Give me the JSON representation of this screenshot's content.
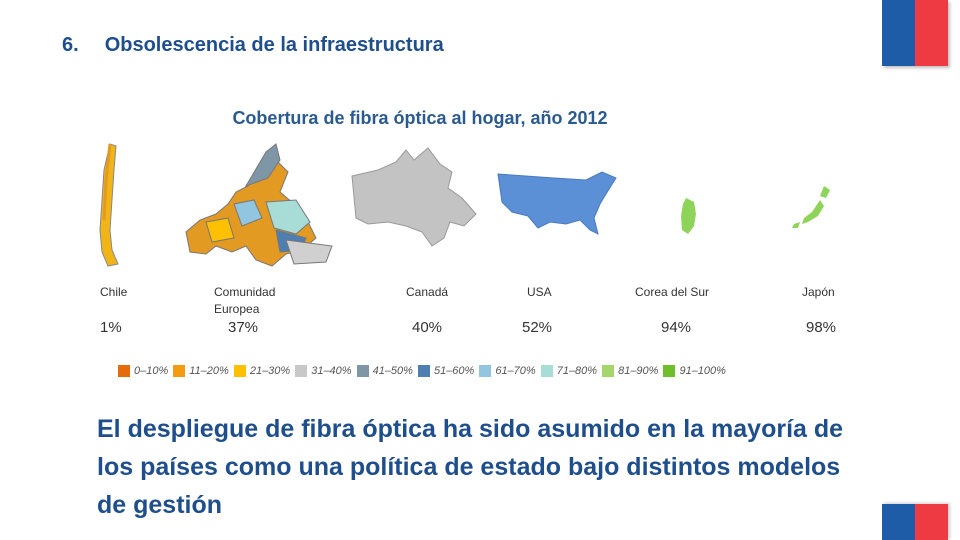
{
  "colors": {
    "accent": "#1f4e8c",
    "flag_blue": "#1f5ca8",
    "flag_red": "#ee3a43"
  },
  "section": {
    "number": "6.",
    "title": "Obsolescencia de la infraestructura"
  },
  "chart_data": {
    "type": "table",
    "title": "Cobertura de fibra óptica al hogar, año 2012",
    "categories": [
      "Chile",
      "Comunidad Europea",
      "Canadá",
      "USA",
      "Corea del Sur",
      "Japón"
    ],
    "values": [
      1,
      37,
      40,
      52,
      94,
      98
    ],
    "value_labels": [
      "1%",
      "37%",
      "40%",
      "52%",
      "94%",
      "98%"
    ],
    "legend": [
      {
        "label": "0–10%",
        "color": "#e46c0a"
      },
      {
        "label": "11–20%",
        "color": "#f39c12"
      },
      {
        "label": "21–30%",
        "color": "#ffc000"
      },
      {
        "label": "31–40%",
        "color": "#c8c8c8"
      },
      {
        "label": "41–50%",
        "color": "#7f96a6"
      },
      {
        "label": "51–60%",
        "color": "#4f7fb0"
      },
      {
        "label": "61–70%",
        "color": "#92c5e0"
      },
      {
        "label": "71–80%",
        "color": "#a8dcd6"
      },
      {
        "label": "81–90%",
        "color": "#a5d66b"
      },
      {
        "label": "91–100%",
        "color": "#6fbf2c"
      }
    ]
  },
  "countries": [
    {
      "label": "Chile",
      "pct": "1%",
      "color": "#f2b518"
    },
    {
      "label": "Comunidad Europea",
      "pct": "37%",
      "color": "#e39a23"
    },
    {
      "label": "Canadá",
      "pct": "40%",
      "color": "#c3c3c3"
    },
    {
      "label": "USA",
      "pct": "52%",
      "color": "#5b8fd6"
    },
    {
      "label": "Corea del Sur",
      "pct": "94%",
      "color": "#8fd45a"
    },
    {
      "label": "Japón",
      "pct": "98%",
      "color": "#8fd45a"
    }
  ],
  "body_text": "El despliegue de fibra óptica ha sido asumido en la mayoría de los países como una política de estado bajo distintos modelos de gestión"
}
